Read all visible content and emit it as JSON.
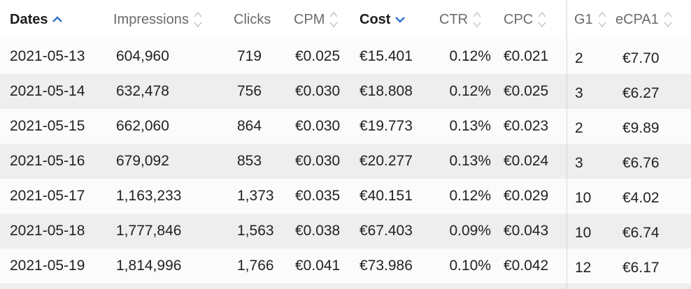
{
  "table": {
    "columns": [
      {
        "key": "dates",
        "label": "Dates",
        "sort": "asc",
        "active": true
      },
      {
        "key": "impressions",
        "label": "Impressions",
        "sort": "none",
        "active": false
      },
      {
        "key": "clicks",
        "label": "Clicks",
        "sort": "hidden",
        "active": false
      },
      {
        "key": "cpm",
        "label": "CPM",
        "sort": "none",
        "active": false
      },
      {
        "key": "cost",
        "label": "Cost",
        "sort": "desc",
        "active": true
      },
      {
        "key": "ctr",
        "label": "CTR",
        "sort": "none",
        "active": false
      },
      {
        "key": "cpc",
        "label": "CPC",
        "sort": "none",
        "active": false
      },
      {
        "key": "g1",
        "label": "G1",
        "sort": "none",
        "active": false
      },
      {
        "key": "ecpa1",
        "label": "eCPA1",
        "sort": "none",
        "active": false
      }
    ],
    "rows": [
      [
        "2021-05-13",
        "604,960",
        "719",
        "€0.025",
        "€15.401",
        "0.12%",
        "€0.021",
        "2",
        "€7.70"
      ],
      [
        "2021-05-14",
        "632,478",
        "756",
        "€0.030",
        "€18.808",
        "0.12%",
        "€0.025",
        "3",
        "€6.27"
      ],
      [
        "2021-05-15",
        "662,060",
        "864",
        "€0.030",
        "€19.773",
        "0.13%",
        "€0.023",
        "2",
        "€9.89"
      ],
      [
        "2021-05-16",
        "679,092",
        "853",
        "€0.030",
        "€20.277",
        "0.13%",
        "€0.024",
        "3",
        "€6.76"
      ],
      [
        "2021-05-17",
        "1,163,233",
        "1,373",
        "€0.035",
        "€40.151",
        "0.12%",
        "€0.029",
        "10",
        "€4.02"
      ],
      [
        "2021-05-18",
        "1,777,846",
        "1,563",
        "€0.038",
        "€67.403",
        "0.09%",
        "€0.043",
        "10",
        "€6.74"
      ],
      [
        "2021-05-19",
        "1,814,996",
        "1,766",
        "€0.041",
        "€73.986",
        "0.10%",
        "€0.042",
        "12",
        "€6.17"
      ]
    ]
  },
  "colors": {
    "accent": "#2f6fd0",
    "sort_inactive": "#cfcfcf",
    "row_odd": "#fbfbfb",
    "row_even": "#eeeeee"
  },
  "icons": {
    "asc": "sort-ascending-icon",
    "desc": "sort-descending-icon",
    "none": "sort-unsorted-icon"
  }
}
